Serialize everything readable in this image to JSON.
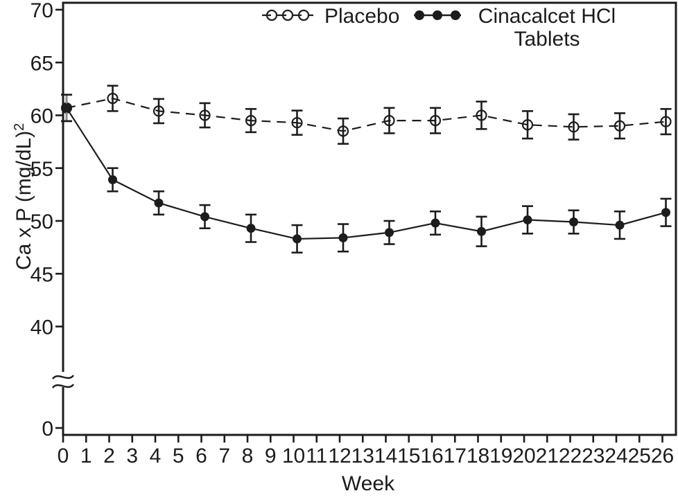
{
  "chart_data": {
    "type": "line",
    "title": "",
    "xlabel": "Week",
    "ylabel": "Ca x P (mg/dL)",
    "ylabel_superscript": "2",
    "x_ticks": [
      0,
      1,
      2,
      3,
      4,
      5,
      6,
      7,
      8,
      9,
      10,
      11,
      12,
      13,
      14,
      15,
      16,
      17,
      18,
      19,
      20,
      21,
      22,
      23,
      24,
      25,
      26
    ],
    "y_ticks_upper": [
      70,
      65,
      60,
      55,
      50,
      45,
      40
    ],
    "y_tick_zero": "0",
    "y_axis_break": true,
    "grid": false,
    "x": [
      0,
      2,
      4,
      6,
      8,
      10,
      12,
      14,
      16,
      18,
      20,
      22,
      24,
      26
    ],
    "series": [
      {
        "name": "Placebo",
        "line_style": "dashed",
        "marker": "open-circle",
        "values": [
          60.7,
          61.6,
          60.4,
          60.0,
          59.5,
          59.3,
          58.5,
          59.5,
          59.5,
          60.0,
          59.1,
          58.9,
          59.0,
          59.4
        ],
        "errors": [
          1.25,
          1.2,
          1.15,
          1.15,
          1.1,
          1.15,
          1.2,
          1.2,
          1.2,
          1.3,
          1.3,
          1.2,
          1.2,
          1.2
        ]
      },
      {
        "name": "Cinacalcet HCl Tablets",
        "line_style": "solid",
        "marker": "filled-circle",
        "values": [
          60.7,
          53.9,
          51.7,
          50.4,
          49.3,
          48.3,
          48.4,
          48.9,
          49.8,
          49.0,
          50.1,
          49.9,
          49.6,
          50.8
        ],
        "errors": [
          1.25,
          1.1,
          1.1,
          1.1,
          1.3,
          1.3,
          1.3,
          1.1,
          1.1,
          1.4,
          1.3,
          1.1,
          1.3,
          1.3
        ]
      }
    ],
    "legend": {
      "position": "top",
      "placebo_label": "Placebo",
      "cinacalcet_label_line1": "Cinacalcet HCl",
      "cinacalcet_label_line2": "Tablets"
    },
    "colors": {
      "ink": "#1c1c1c",
      "background": "#ffffff",
      "overlap_errorbar": "#8c8c8c"
    }
  }
}
